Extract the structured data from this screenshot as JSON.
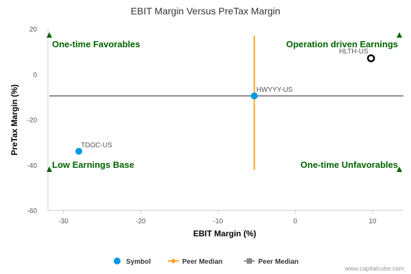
{
  "chart_data": {
    "type": "scatter",
    "title": "EBIT Margin Versus PreTax Margin",
    "xlabel": "EBIT Margin (%)",
    "ylabel": "PreTax Margin (%)",
    "xlim": [
      -32,
      14
    ],
    "ylim": [
      -60,
      20
    ],
    "xticks": [
      -30,
      -20,
      -10,
      0,
      10
    ],
    "yticks": [
      -60,
      -40,
      -20,
      0,
      20
    ],
    "points": [
      {
        "label": "HWYYY-US",
        "x": -5.3,
        "y": -9.6,
        "style": "symbol-filled"
      },
      {
        "label": "HLTH-US",
        "x": 9.8,
        "y": 7.0,
        "style": "symbol-hollow"
      },
      {
        "label": "TDOC-US",
        "x": -28.0,
        "y": -34.0,
        "style": "symbol-filled"
      }
    ],
    "peer_median_x": -5.3,
    "peer_median_y": -9.6,
    "quadrants": {
      "top_left": "One-time Favorables",
      "top_right": "Operation driven Earnings",
      "bottom_left": "Low Earnings Base",
      "bottom_right": "One-time Unfavorables"
    },
    "legend": [
      {
        "label": "Symbol",
        "color": "#0099e6"
      },
      {
        "label": "Peer Median",
        "color": "#f5a623"
      },
      {
        "label": "Peer Median",
        "color": "#8c8c8c"
      }
    ]
  },
  "colors": {
    "symbol": "#0099e6",
    "median_vertical": "#f5a623",
    "median_horizontal": "#8c8c8c",
    "quadrant_text": "#006400"
  },
  "credit": "www.capitalcube.com"
}
